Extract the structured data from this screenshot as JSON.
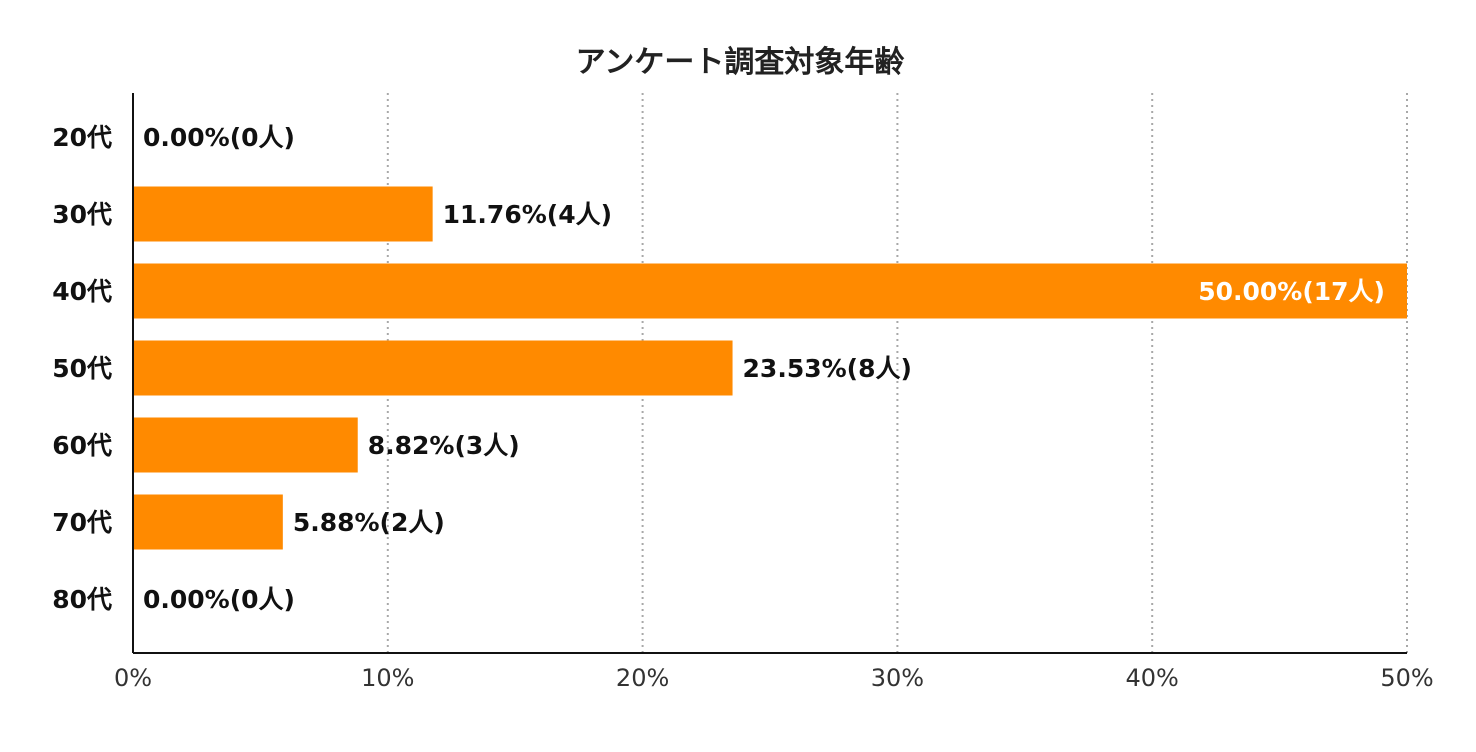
{
  "chart_data": {
    "type": "bar",
    "orientation": "horizontal",
    "title": "アンケート調査対象年齢",
    "xlabel": "",
    "ylabel": "",
    "categories": [
      "20代",
      "30代",
      "40代",
      "50代",
      "60代",
      "70代",
      "80代"
    ],
    "series": [
      {
        "values": [
          0.0,
          11.76,
          50.0,
          23.53,
          8.82,
          5.88,
          0.0
        ],
        "counts": [
          0,
          4,
          17,
          8,
          3,
          2,
          0
        ],
        "data_labels": [
          "0.00%(0人)",
          "11.76%(4人)",
          "50.00%(17人)",
          "23.53%(8人)",
          "8.82%(3人)",
          "5.88%(2人)",
          "0.00%(0人)"
        ]
      }
    ],
    "xlim": [
      0,
      50
    ],
    "xticks": [
      0,
      10,
      20,
      30,
      40,
      50
    ],
    "xtick_labels": [
      "0%",
      "10%",
      "20%",
      "30%",
      "40%",
      "50%"
    ],
    "grid": "vertical-dotted",
    "legend": "none",
    "colors": {
      "bar": "#ff8a00",
      "grid": "#a8a8a8",
      "axis": "#111111",
      "label_outside": "#111111",
      "label_inside": "#ffffff"
    }
  }
}
